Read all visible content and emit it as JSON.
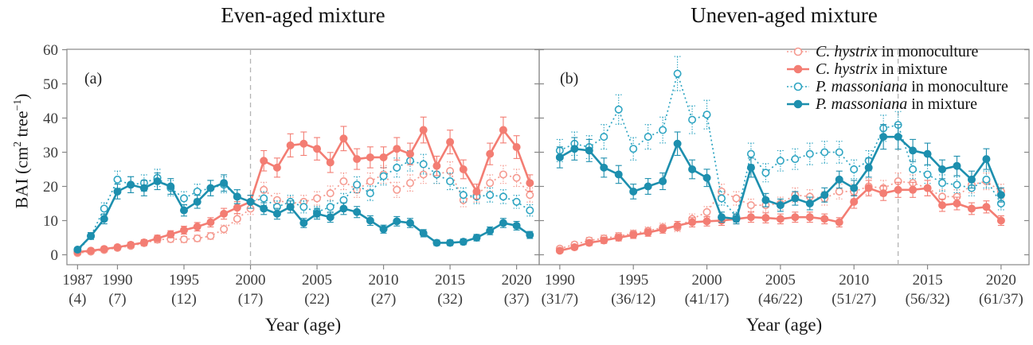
{
  "figure": {
    "x_axis_label": "Year (age)",
    "y_axis_label_parts": {
      "pre": "BAI (cm",
      "sup1": "2",
      "mid": " tree",
      "sup2": "−1",
      "post": ")"
    },
    "frame_color": "#878787",
    "tick_label_color": "#3c3c3c",
    "dashed_line_color": "#b4b4b4"
  },
  "legend": {
    "items": [
      {
        "species": "C. hystrix",
        "suffix": " in monoculture",
        "variant": "dotted-open",
        "color": "#f59a90"
      },
      {
        "species": "C. hystrix",
        "suffix": " in mixture",
        "variant": "solid-filled",
        "color": "#f37d73"
      },
      {
        "species": "P. massoniana",
        "suffix": " in monoculture",
        "variant": "dotted-open",
        "color": "#2fa5c2"
      },
      {
        "species": "P. massoniana",
        "suffix": " in mixture",
        "variant": "solid-filled",
        "color": "#1d8fae"
      }
    ]
  },
  "chart_data": [
    {
      "type": "line",
      "panel_label": "(a)",
      "title": "Even-aged mixture",
      "x_label": "Year (age)",
      "ylabel": "BAI (cm2 tree-1)",
      "ylim": [
        0,
        60
      ],
      "y_ticks": [
        0,
        10,
        20,
        30,
        40,
        50,
        60
      ],
      "dashed_vline_year": 2000,
      "error_bar_model": {
        "type": "proportional",
        "base": 0.5,
        "scale": 0.09,
        "max": 5
      },
      "x_ticks": [
        {
          "year": 1987,
          "age": "(4)"
        },
        {
          "year": 1990,
          "age": "(7)"
        },
        {
          "year": 1995,
          "age": "(12)"
        },
        {
          "year": 2000,
          "age": "(17)"
        },
        {
          "year": 2005,
          "age": "(22)"
        },
        {
          "year": 2010,
          "age": "(27)"
        },
        {
          "year": 2015,
          "age": "(32)"
        },
        {
          "year": 2020,
          "age": "(37)"
        }
      ],
      "years": [
        1987,
        1988,
        1989,
        1990,
        1991,
        1992,
        1993,
        1994,
        1995,
        1996,
        1997,
        1998,
        1999,
        2000,
        2001,
        2002,
        2003,
        2004,
        2005,
        2006,
        2007,
        2008,
        2009,
        2010,
        2011,
        2012,
        2013,
        2014,
        2015,
        2016,
        2017,
        2018,
        2019,
        2020,
        2021
      ],
      "series": [
        {
          "name": "C. hystrix in monoculture",
          "style": "dotted",
          "marker": "open",
          "color": "#f59a90",
          "values": [
            0.5,
            0.9,
            1.4,
            2.0,
            2.6,
            3.4,
            4.4,
            4.6,
            4.5,
            4.8,
            5.5,
            7.5,
            10.5,
            13.5,
            19.0,
            16.0,
            15.0,
            15.5,
            16.5,
            18.0,
            21.5,
            19.0,
            21.5,
            23.5,
            19.0,
            21.0,
            23.5,
            23.5,
            24.5,
            16.0,
            17.5,
            21.0,
            23.5,
            22.5,
            17.5
          ]
        },
        {
          "name": "C. hystrix in mixture",
          "style": "solid",
          "marker": "filled",
          "color": "#f37d73",
          "values": [
            0.8,
            1.2,
            1.7,
            2.2,
            2.9,
            3.6,
            4.8,
            6.0,
            7.2,
            8.2,
            9.5,
            12.0,
            13.8,
            15.5,
            27.5,
            25.5,
            32.0,
            32.5,
            31.0,
            27.0,
            34.0,
            28.0,
            28.5,
            28.5,
            31.0,
            29.5,
            36.5,
            26.0,
            33.0,
            25.0,
            18.5,
            29.5,
            36.5,
            31.5,
            21.0
          ]
        },
        {
          "name": "P. massoniana in monoculture",
          "style": "dotted",
          "marker": "open",
          "color": "#2fa5c2",
          "values": [
            1.0,
            5.5,
            13.5,
            22.0,
            20.5,
            21.0,
            22.5,
            19.5,
            16.5,
            18.5,
            19.5,
            20.5,
            17.0,
            15.5,
            16.5,
            14.0,
            15.5,
            14.0,
            12.5,
            14.0,
            16.0,
            20.5,
            18.0,
            23.0,
            25.5,
            27.5,
            26.5,
            23.5,
            21.5,
            17.5,
            17.0,
            17.5,
            17.0,
            15.5,
            13.0
          ]
        },
        {
          "name": "P. massoniana in mixture",
          "style": "solid",
          "marker": "filled",
          "color": "#1d8fae",
          "values": [
            1.5,
            5.5,
            10.5,
            18.5,
            20.5,
            19.5,
            21.5,
            20.0,
            13.0,
            15.5,
            19.5,
            21.0,
            17.0,
            15.5,
            13.5,
            12.0,
            14.0,
            9.3,
            12.0,
            11.0,
            13.5,
            12.5,
            10.0,
            7.5,
            9.8,
            9.3,
            6.3,
            3.5,
            3.5,
            3.8,
            5.0,
            7.0,
            9.3,
            8.5,
            5.8
          ]
        }
      ]
    },
    {
      "type": "line",
      "panel_label": "(b)",
      "title": "Uneven-aged mixture",
      "x_label": "Year (age)",
      "ylabel": "BAI (cm2 tree-1)",
      "ylim": [
        0,
        60
      ],
      "y_ticks": [
        0,
        10,
        20,
        30,
        40,
        50,
        60
      ],
      "dashed_vline_year": 2013,
      "error_bar_model": {
        "type": "proportional",
        "base": 0.5,
        "scale": 0.09,
        "max": 5
      },
      "x_ticks": [
        {
          "year": 1990,
          "age": "(31/7)"
        },
        {
          "year": 1995,
          "age": "(36/12)"
        },
        {
          "year": 2000,
          "age": "(41/17)"
        },
        {
          "year": 2005,
          "age": "(46/22)"
        },
        {
          "year": 2010,
          "age": "(51/27)"
        },
        {
          "year": 2015,
          "age": "(56/32)"
        },
        {
          "year": 2020,
          "age": "(61/37)"
        }
      ],
      "years": [
        1990,
        1991,
        1992,
        1993,
        1994,
        1995,
        1996,
        1997,
        1998,
        1999,
        2000,
        2001,
        2002,
        2003,
        2004,
        2005,
        2006,
        2007,
        2008,
        2009,
        2010,
        2011,
        2012,
        2013,
        2014,
        2015,
        2016,
        2017,
        2018,
        2019,
        2020
      ],
      "series": [
        {
          "name": "C. hystrix in monoculture",
          "style": "dotted",
          "marker": "open",
          "color": "#f59a90",
          "values": [
            1.8,
            3.0,
            4.2,
            4.8,
            5.5,
            6.2,
            7.0,
            8.0,
            8.0,
            10.5,
            12.5,
            18.5,
            16.5,
            14.5,
            14.5,
            15.0,
            17.5,
            17.0,
            16.5,
            18.5,
            18.5,
            20.0,
            19.5,
            21.5,
            21.0,
            19.5,
            17.0,
            17.0,
            20.5,
            21.5,
            18.5
          ]
        },
        {
          "name": "C. hystrix in mixture",
          "style": "solid",
          "marker": "filled",
          "color": "#f37d73",
          "values": [
            1.2,
            2.2,
            3.5,
            4.2,
            5.0,
            5.8,
            6.5,
            7.5,
            8.5,
            9.5,
            9.8,
            10.0,
            10.5,
            11.0,
            10.8,
            10.5,
            11.0,
            11.0,
            10.5,
            9.5,
            15.5,
            19.5,
            18.0,
            19.0,
            19.0,
            19.5,
            14.5,
            15.0,
            13.5,
            14.0,
            10.0
          ]
        },
        {
          "name": "P. massoniana in monoculture",
          "style": "dotted",
          "marker": "open",
          "color": "#2fa5c2",
          "values": [
            30.5,
            32.5,
            31.5,
            34.5,
            42.5,
            31.0,
            34.5,
            36.5,
            53.0,
            39.5,
            41.0,
            16.5,
            11.0,
            29.5,
            24.0,
            27.5,
            28.0,
            29.5,
            30.0,
            30.0,
            25.0,
            27.5,
            37.0,
            38.0,
            25.0,
            23.5,
            21.0,
            20.5,
            19.5,
            22.0,
            15.0
          ]
        },
        {
          "name": "P. massoniana in mixture",
          "style": "solid",
          "marker": "filled",
          "color": "#1d8fae",
          "values": [
            28.5,
            31.0,
            30.5,
            25.5,
            23.5,
            18.5,
            20.0,
            21.5,
            32.5,
            25.0,
            22.5,
            11.0,
            10.5,
            25.5,
            16.0,
            14.5,
            16.5,
            15.0,
            17.5,
            22.0,
            19.5,
            25.5,
            34.5,
            34.5,
            30.5,
            29.5,
            25.0,
            26.0,
            22.0,
            28.0,
            17.5
          ]
        }
      ]
    }
  ]
}
